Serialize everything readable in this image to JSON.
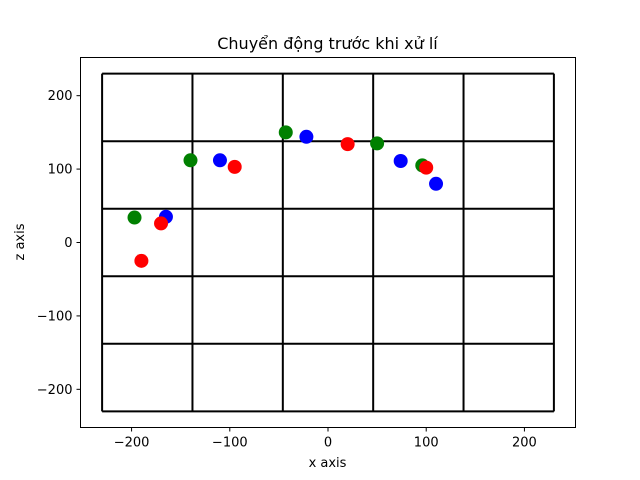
{
  "chart_data": {
    "type": "scatter",
    "title": "Chuyển động trước khi xử lí",
    "xlabel": "x axis",
    "ylabel": "z axis",
    "xlim": [
      -252,
      252
    ],
    "ylim": [
      -252,
      252
    ],
    "xticks": [
      -200,
      -100,
      0,
      100,
      200
    ],
    "yticks": [
      -200,
      -100,
      0,
      100,
      200
    ],
    "xtick_labels": [
      "−200",
      "−100",
      "0",
      "100",
      "200"
    ],
    "ytick_labels": [
      "−200",
      "−100",
      "0",
      "100",
      "200"
    ],
    "grid": {
      "lines": [
        -230,
        -138,
        -46,
        46,
        138,
        230
      ],
      "color": "#000000"
    },
    "series": [
      {
        "color": "#008000",
        "points": [
          [
            -197,
            34
          ],
          [
            -140,
            112
          ],
          [
            -43,
            150
          ],
          [
            50,
            135
          ],
          [
            96,
            105
          ]
        ]
      },
      {
        "color": "#0000ff",
        "points": [
          [
            -165,
            35
          ],
          [
            -110,
            112
          ],
          [
            -22,
            144
          ],
          [
            74,
            111
          ],
          [
            110,
            80
          ]
        ]
      },
      {
        "color": "#ff0000",
        "points": [
          [
            -190,
            -25
          ],
          [
            -170,
            26
          ],
          [
            -95,
            103
          ],
          [
            20,
            134
          ],
          [
            100,
            102
          ]
        ]
      }
    ]
  }
}
